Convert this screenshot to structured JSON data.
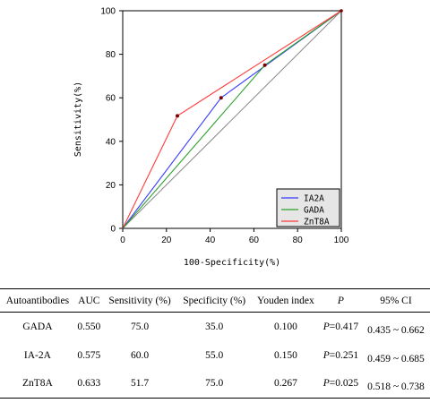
{
  "chart_data": {
    "type": "line",
    "xlabel": "100-Specificity(%)",
    "ylabel": "Sensitivity(%)",
    "xlim": [
      0,
      100
    ],
    "ylim": [
      0,
      100
    ],
    "xticks": [
      0,
      20,
      40,
      60,
      80,
      100
    ],
    "yticks": [
      0,
      20,
      40,
      60,
      80,
      100
    ],
    "grid": false,
    "legend_position": "bottom-right",
    "diagonal_reference": true,
    "series": [
      {
        "name": "IA2A",
        "color": "#3b3bff",
        "x": [
          0,
          45,
          100
        ],
        "y": [
          0,
          60,
          100
        ]
      },
      {
        "name": "GADA",
        "color": "#2ea02e",
        "x": [
          0,
          65,
          100
        ],
        "y": [
          0,
          75,
          100
        ]
      },
      {
        "name": "ZnT8A",
        "color": "#ff3b3b",
        "x": [
          0,
          25,
          100
        ],
        "y": [
          0,
          51.7,
          100
        ]
      }
    ]
  },
  "table": {
    "headers": {
      "autoantibodies": "Autoantibodies",
      "auc": "AUC",
      "sensitivity": "Sensitivity (%)",
      "specificity": "Specificity (%)",
      "youden": "Youden index",
      "p": "P",
      "ci": "95% CI"
    },
    "rows": [
      {
        "name": "GADA",
        "auc": "0.550",
        "sensitivity": "75.0",
        "specificity": "35.0",
        "youden": "0.100",
        "p_label": "P",
        "p_value": "=0.417",
        "ci": "0.435 ~ 0.662"
      },
      {
        "name": "IA-2A",
        "auc": "0.575",
        "sensitivity": "60.0",
        "specificity": "55.0",
        "youden": "0.150",
        "p_label": "P",
        "p_value": "=0.251",
        "ci": "0.459 ~ 0.685"
      },
      {
        "name": "ZnT8A",
        "auc": "0.633",
        "sensitivity": "51.7",
        "specificity": "75.0",
        "youden": "0.267",
        "p_label": "P",
        "p_value": "=0.025",
        "ci": "0.518 ~ 0.738"
      }
    ]
  }
}
